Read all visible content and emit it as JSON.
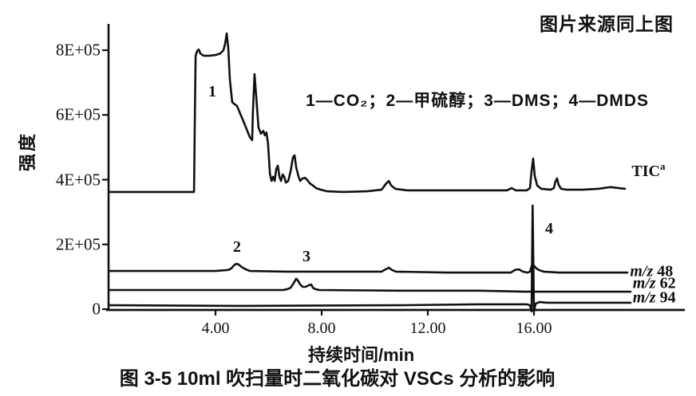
{
  "page": {
    "background": "#ffffff",
    "ink": "#111111"
  },
  "header": {
    "source_note": "图片来源同上图"
  },
  "figure": {
    "legend": "1—CO₂；2—甲硫醇；3—DMS；4—DMDS",
    "caption": "图 3-5  10ml 吹扫量时二氧化碳对 VSCs 分析的影响"
  },
  "chart_data": {
    "type": "line",
    "xlabel": "持续时间/min",
    "ylabel": "强度",
    "xlim": [
      0,
      21.8
    ],
    "ylim": [
      0,
      880000
    ],
    "grid": false,
    "x_ticks": [
      {
        "t": 4,
        "label": "4.00"
      },
      {
        "t": 8,
        "label": "8.00"
      },
      {
        "t": 12,
        "label": "12.00"
      },
      {
        "t": 16,
        "label": "16.00"
      }
    ],
    "y_ticks": [
      {
        "v": 800000,
        "label": "8E+05"
      },
      {
        "v": 600000,
        "label": "6E+05"
      },
      {
        "v": 400000,
        "label": "4E+05"
      },
      {
        "v": 200000,
        "label": "2E+05"
      },
      {
        "v": 0,
        "label": "0"
      }
    ],
    "annotations": [
      {
        "text": "1",
        "t": 3.88,
        "v": 672000
      },
      {
        "text": "2",
        "t": 4.81,
        "v": 192000
      },
      {
        "text": "3",
        "t": 7.43,
        "v": 162000
      },
      {
        "text": "4",
        "t": 16.57,
        "v": 249000
      }
    ],
    "series": [
      {
        "name": "TIC",
        "label_parts": [
          {
            "text": "TIC"
          },
          {
            "text": "a",
            "style": "sup"
          }
        ],
        "label_at": {
          "t": 19.68,
          "v": 433000
        },
        "points": [
          [
            0,
            362000
          ],
          [
            3.19,
            362000
          ],
          [
            3.22,
            586000
          ],
          [
            3.25,
            783000
          ],
          [
            3.31,
            798000
          ],
          [
            3.37,
            802000
          ],
          [
            3.43,
            790000
          ],
          [
            3.55,
            783000
          ],
          [
            3.76,
            783000
          ],
          [
            4.0,
            785000
          ],
          [
            4.18,
            790000
          ],
          [
            4.3,
            800000
          ],
          [
            4.36,
            820000
          ],
          [
            4.42,
            852000
          ],
          [
            4.48,
            807000
          ],
          [
            4.54,
            709000
          ],
          [
            4.63,
            640000
          ],
          [
            4.72,
            633000
          ],
          [
            4.81,
            628000
          ],
          [
            5.05,
            581000
          ],
          [
            5.29,
            532000
          ],
          [
            5.38,
            522000
          ],
          [
            5.41,
            610000
          ],
          [
            5.47,
            726000
          ],
          [
            5.53,
            660000
          ],
          [
            5.62,
            561000
          ],
          [
            5.71,
            542000
          ],
          [
            5.8,
            551000
          ],
          [
            5.86,
            537000
          ],
          [
            5.92,
            546000
          ],
          [
            5.98,
            512000
          ],
          [
            6.05,
            418000
          ],
          [
            6.11,
            396000
          ],
          [
            6.17,
            409000
          ],
          [
            6.23,
            396000
          ],
          [
            6.29,
            433000
          ],
          [
            6.35,
            443000
          ],
          [
            6.41,
            409000
          ],
          [
            6.47,
            396000
          ],
          [
            6.53,
            416000
          ],
          [
            6.59,
            409000
          ],
          [
            6.65,
            391000
          ],
          [
            6.74,
            396000
          ],
          [
            6.83,
            426000
          ],
          [
            6.92,
            470000
          ],
          [
            6.98,
            475000
          ],
          [
            7.04,
            438000
          ],
          [
            7.13,
            409000
          ],
          [
            7.19,
            396000
          ],
          [
            7.28,
            404000
          ],
          [
            7.37,
            406000
          ],
          [
            7.46,
            399000
          ],
          [
            7.55,
            389000
          ],
          [
            7.67,
            382000
          ],
          [
            7.79,
            374000
          ],
          [
            7.97,
            369000
          ],
          [
            8.21,
            364000
          ],
          [
            8.81,
            362000
          ],
          [
            9.71,
            364000
          ],
          [
            10.26,
            369000
          ],
          [
            10.41,
            386000
          ],
          [
            10.53,
            396000
          ],
          [
            10.62,
            382000
          ],
          [
            10.77,
            372000
          ],
          [
            11.22,
            367000
          ],
          [
            12.72,
            367000
          ],
          [
            14.98,
            367000
          ],
          [
            15.16,
            374000
          ],
          [
            15.31,
            367000
          ],
          [
            15.73,
            367000
          ],
          [
            15.85,
            374000
          ],
          [
            15.91,
            426000
          ],
          [
            15.97,
            465000
          ],
          [
            16.03,
            411000
          ],
          [
            16.12,
            382000
          ],
          [
            16.27,
            372000
          ],
          [
            16.63,
            369000
          ],
          [
            16.75,
            374000
          ],
          [
            16.81,
            394000
          ],
          [
            16.87,
            404000
          ],
          [
            16.93,
            384000
          ],
          [
            17.02,
            372000
          ],
          [
            17.23,
            369000
          ],
          [
            17.83,
            369000
          ],
          [
            18.43,
            372000
          ],
          [
            18.89,
            377000
          ],
          [
            19.19,
            374000
          ],
          [
            19.43,
            372000
          ]
        ]
      },
      {
        "name": "m/z 48",
        "label_parts": [
          {
            "text": "m/z",
            "style": "italic"
          },
          {
            "text": " 48"
          }
        ],
        "label_at": {
          "t": 19.62,
          "v": 115000
        },
        "points": [
          [
            0,
            118000
          ],
          [
            4.0,
            118000
          ],
          [
            4.48,
            121000
          ],
          [
            4.6,
            126000
          ],
          [
            4.69,
            135000
          ],
          [
            4.78,
            140000
          ],
          [
            4.87,
            138000
          ],
          [
            4.99,
            130000
          ],
          [
            5.14,
            123000
          ],
          [
            5.29,
            118000
          ],
          [
            6.71,
            116000
          ],
          [
            8.81,
            116000
          ],
          [
            10.26,
            116000
          ],
          [
            10.41,
            123000
          ],
          [
            10.53,
            128000
          ],
          [
            10.65,
            121000
          ],
          [
            10.8,
            116000
          ],
          [
            12.72,
            113000
          ],
          [
            15.13,
            113000
          ],
          [
            15.28,
            121000
          ],
          [
            15.43,
            123000
          ],
          [
            15.58,
            116000
          ],
          [
            15.76,
            113000
          ],
          [
            15.85,
            116000
          ],
          [
            15.91,
            133000
          ],
          [
            15.97,
            138000
          ],
          [
            16.06,
            128000
          ],
          [
            16.18,
            121000
          ],
          [
            16.36,
            116000
          ],
          [
            16.93,
            113000
          ],
          [
            18.74,
            113000
          ],
          [
            19.52,
            113000
          ]
        ]
      },
      {
        "name": "m/z 62",
        "label_parts": [
          {
            "text": "m/z",
            "style": "italic"
          },
          {
            "text": " 62"
          }
        ],
        "label_at": {
          "t": 19.72,
          "v": 79000
        },
        "points": [
          [
            0,
            59000
          ],
          [
            4.9,
            59000
          ],
          [
            6.56,
            59000
          ],
          [
            6.71,
            62000
          ],
          [
            6.83,
            66000
          ],
          [
            6.95,
            81000
          ],
          [
            7.04,
            94000
          ],
          [
            7.1,
            89000
          ],
          [
            7.19,
            76000
          ],
          [
            7.28,
            69000
          ],
          [
            7.4,
            69000
          ],
          [
            7.52,
            74000
          ],
          [
            7.61,
            76000
          ],
          [
            7.67,
            66000
          ],
          [
            7.76,
            62000
          ],
          [
            7.91,
            59000
          ],
          [
            10.92,
            57000
          ],
          [
            13.92,
            57000
          ],
          [
            15.73,
            54000
          ],
          [
            16.93,
            54000
          ],
          [
            18.74,
            54000
          ],
          [
            19.64,
            54000
          ]
        ]
      },
      {
        "name": "m/z 94",
        "label_parts": [
          {
            "text": "m/z",
            "style": "italic"
          },
          {
            "text": " 94"
          }
        ],
        "label_at": {
          "t": 19.72,
          "v": 34000
        },
        "points": [
          [
            0,
            12000
          ],
          [
            4.9,
            10000
          ],
          [
            10.92,
            12000
          ],
          [
            13.92,
            15000
          ],
          [
            15.73,
            15000
          ],
          [
            15.85,
            12000
          ],
          [
            15.91,
            -7000
          ],
          [
            15.95,
            320000
          ],
          [
            16.0,
            -7000
          ],
          [
            16.06,
            17000
          ],
          [
            16.21,
            22000
          ],
          [
            16.48,
            20000
          ],
          [
            17.53,
            20000
          ],
          [
            19.64,
            20000
          ]
        ]
      }
    ]
  }
}
